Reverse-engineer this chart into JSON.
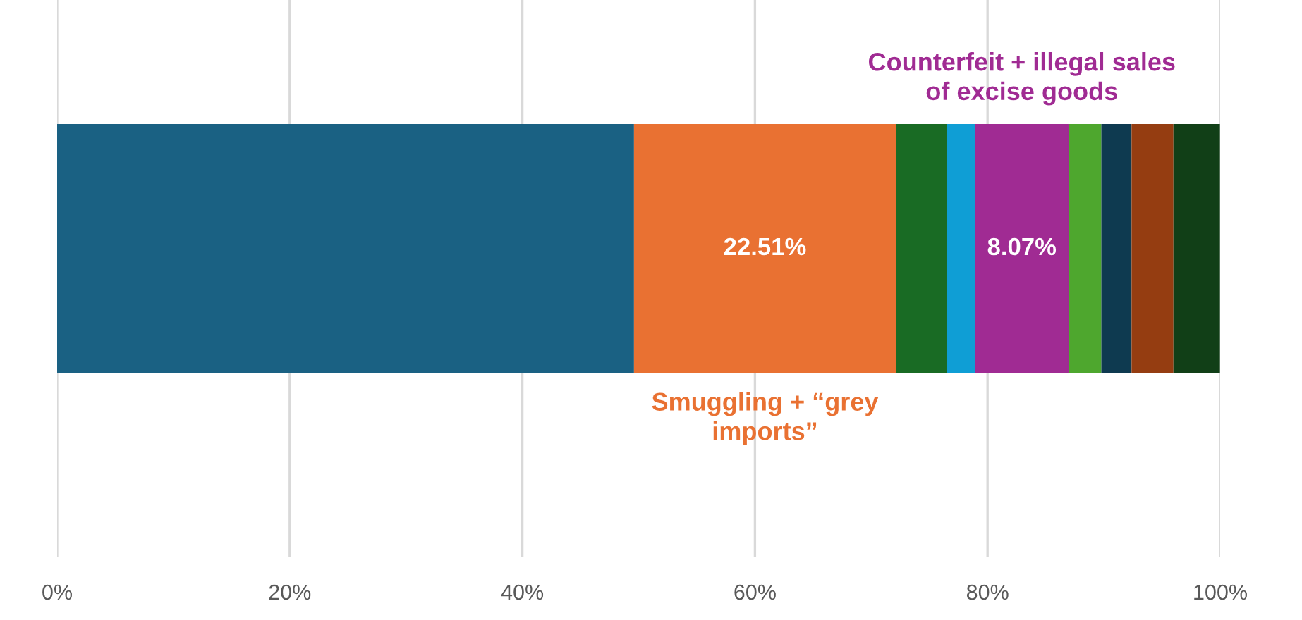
{
  "chart_data": {
    "type": "bar",
    "orientation": "horizontal",
    "stacked": true,
    "categories": [
      null
    ],
    "series": [
      {
        "color": "#1a6183",
        "values": [
          49.6
        ]
      },
      {
        "name": "Smuggling + “grey\nimports”",
        "color": "#e97132",
        "values": [
          22.51
        ],
        "value_labels": [
          "22.51%"
        ]
      },
      {
        "color": "#196b24",
        "values": [
          4.4
        ]
      },
      {
        "color": "#0f9ed5",
        "values": [
          2.4
        ]
      },
      {
        "name": "Counterfeit + illegal sales\nof excise goods",
        "color": "#a02b93",
        "values": [
          8.07
        ],
        "value_labels": [
          "8.07%"
        ]
      },
      {
        "color": "#4ea72e",
        "values": [
          2.8
        ]
      },
      {
        "color": "#0e3a50",
        "values": [
          2.6
        ]
      },
      {
        "color": "#953d11",
        "values": [
          3.6
        ]
      },
      {
        "color": "#113f17",
        "values": [
          4.0
        ]
      }
    ],
    "xlim": [
      0,
      100
    ],
    "xticks": [
      {
        "value": 0,
        "label": "0%"
      },
      {
        "value": 20,
        "label": "20%"
      },
      {
        "value": 40,
        "label": "40%"
      },
      {
        "value": 60,
        "label": "60%"
      },
      {
        "value": 80,
        "label": "80%"
      },
      {
        "value": 100,
        "label": "100%"
      }
    ],
    "grid": "x",
    "legend": false
  }
}
